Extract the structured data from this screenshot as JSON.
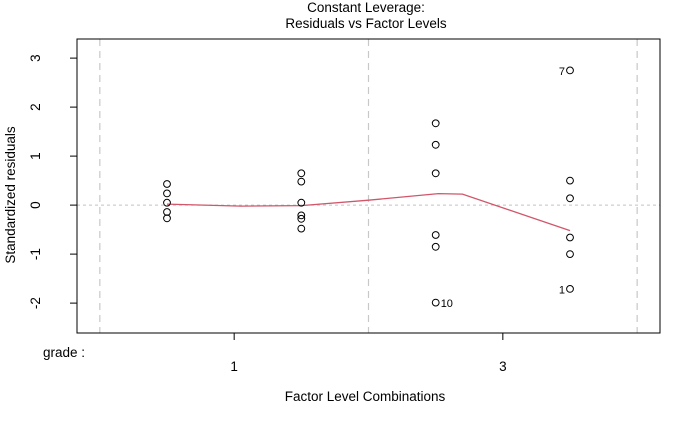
{
  "chart_data": {
    "type": "scatter",
    "title_lines": [
      "Constant Leverage:",
      "Residuals vs Factor Levels"
    ],
    "xlabel": "Factor Level Combinations",
    "ylabel": "Standardized residuals",
    "factor_axis_label": "grade :",
    "x_axis": {
      "lim": [
        0.33,
        4.67
      ],
      "ticks": [
        {
          "label": "1",
          "u": 1.5
        },
        {
          "label": "3",
          "u": 3.5
        }
      ]
    },
    "y_axis": {
      "lim": [
        -2.61,
        3.39
      ],
      "ticks": [
        3,
        2,
        1,
        0,
        -1,
        -2
      ]
    },
    "reference_line": {
      "y": 0
    },
    "group_separators_u": [
      0.5,
      2.5,
      4.5
    ],
    "groups": [
      {
        "u": 1,
        "residuals": [
          0.43,
          0.24,
          0.05,
          -0.14,
          -0.27
        ]
      },
      {
        "u": 2,
        "residuals": [
          0.65,
          0.48,
          0.05,
          -0.21,
          -0.28,
          -0.48
        ]
      },
      {
        "u": 3,
        "residuals": [
          1.67,
          1.23,
          0.65,
          -0.61,
          -0.85,
          -1.99
        ]
      },
      {
        "u": 4,
        "residuals": [
          2.75,
          0.5,
          0.14,
          -0.66,
          -1.0,
          -1.71
        ]
      }
    ],
    "labeled_points": [
      {
        "label": "7",
        "u": 4,
        "residual": 2.75,
        "side": "left"
      },
      {
        "label": "10",
        "u": 3,
        "residual": -1.99,
        "side": "right"
      },
      {
        "label": "1",
        "u": 4,
        "residual": -1.71,
        "side": "left"
      }
    ],
    "smoother": {
      "color": "#d1566a",
      "vertices": [
        [
          1,
          0.02
        ],
        [
          1.55,
          -0.02
        ],
        [
          2,
          -0.01
        ],
        [
          2.5,
          0.1
        ],
        [
          3.02,
          0.235
        ],
        [
          3.2,
          0.225
        ],
        [
          4,
          -0.52
        ]
      ]
    },
    "colors": {
      "frame": "#000000",
      "separator": "#c8c8c8",
      "reference": "#c2c2c2",
      "point": "#000000"
    }
  }
}
